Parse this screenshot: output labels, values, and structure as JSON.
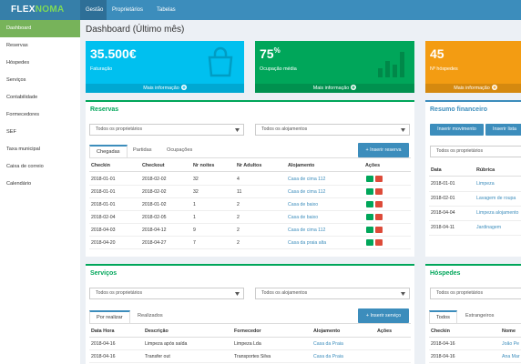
{
  "header": {
    "logo_a": "FLEX",
    "logo_b": "NOMA",
    "nav": [
      "Gestão",
      "Proprietários",
      "Tabelas"
    ]
  },
  "sidebar": [
    "Dashboard",
    "Reservas",
    "Hóspedes",
    "Serviços",
    "Contabilidade",
    "Formecedores",
    "SEF",
    "Taxa municipal",
    "Caixa de correio",
    "Calendário"
  ],
  "page_title": "Dashboard (Último mês)",
  "info_boxes": [
    {
      "value": "35.500€",
      "label": "Faturação",
      "more": "Mais informação"
    },
    {
      "value": "75",
      "unit": "%",
      "label": "Ocupação média",
      "more": "Mais informação"
    },
    {
      "value": "45",
      "label": "Nº hóspedes",
      "more": "Mais informação"
    }
  ],
  "reservas": {
    "title": "Reservas",
    "filters": [
      "Todos os proprietários",
      "Todos os alojamentos"
    ],
    "tabs": [
      "Chegadas",
      "Partidas",
      "Ocupações"
    ],
    "button": "+ Inserir reserva",
    "columns": [
      "Checkin",
      "Checkout",
      "Nr noites",
      "Nr Adultos",
      "Alojamento",
      "Ações"
    ],
    "rows": [
      [
        "2018-01-01",
        "2018-02-02",
        "32",
        "4",
        "Casa de cima 112"
      ],
      [
        "2018-01-01",
        "2018-02-02",
        "32",
        "11",
        "Casa de cima 112"
      ],
      [
        "2018-01-01",
        "2018-01-02",
        "1",
        "2",
        "Casa de baixo"
      ],
      [
        "2018-02-04",
        "2018-02-05",
        "1",
        "2",
        "Casa de baixo"
      ],
      [
        "2018-04-03",
        "2018-04-12",
        "9",
        "2",
        "Casa de cima 112"
      ],
      [
        "2018-04-20",
        "2018-04-27",
        "7",
        "2",
        "Casa da praia alta"
      ]
    ]
  },
  "resumo": {
    "title": "Resumo financeiro",
    "buttons": [
      "Inserir movimento",
      "Inserir lista"
    ],
    "filter": "Todos os proprietários",
    "columns": [
      "Data",
      "Rúbrica"
    ],
    "rows": [
      [
        "2018-01-01",
        "Limpeza"
      ],
      [
        "2018-02-01",
        "Lavagem de roupa"
      ],
      [
        "2018-04-04",
        "Limpeza alojamento"
      ],
      [
        "2018-04-11",
        "Jardinagem"
      ]
    ]
  },
  "servicos": {
    "title": "Serviços",
    "filters": [
      "Todos os proprietários",
      "Todos os alojamentos"
    ],
    "tabs": [
      "Por realizar",
      "Realizados"
    ],
    "button": "+ Inserir serviço",
    "columns": [
      "Data Hora",
      "Descrição",
      "Fornecedor",
      "Alojamento",
      "Ações"
    ],
    "rows": [
      [
        "2018-04-16",
        "Limpeza após saída",
        "Limpeza Lda",
        "Casa da Praia"
      ],
      [
        "2018-04-16",
        "Transfer out",
        "Transportes Silva",
        "Casa da Praia"
      ]
    ]
  },
  "hospedes": {
    "title": "Hóspedes",
    "filter": "Todos os proprietários",
    "tabs": [
      "Todos",
      "Estrangeiros"
    ],
    "columns": [
      "Checkin",
      "Nome"
    ],
    "rows": [
      [
        "2018-04-16",
        "João Pe"
      ],
      [
        "2018-04-16",
        "Ana Mar"
      ]
    ]
  }
}
